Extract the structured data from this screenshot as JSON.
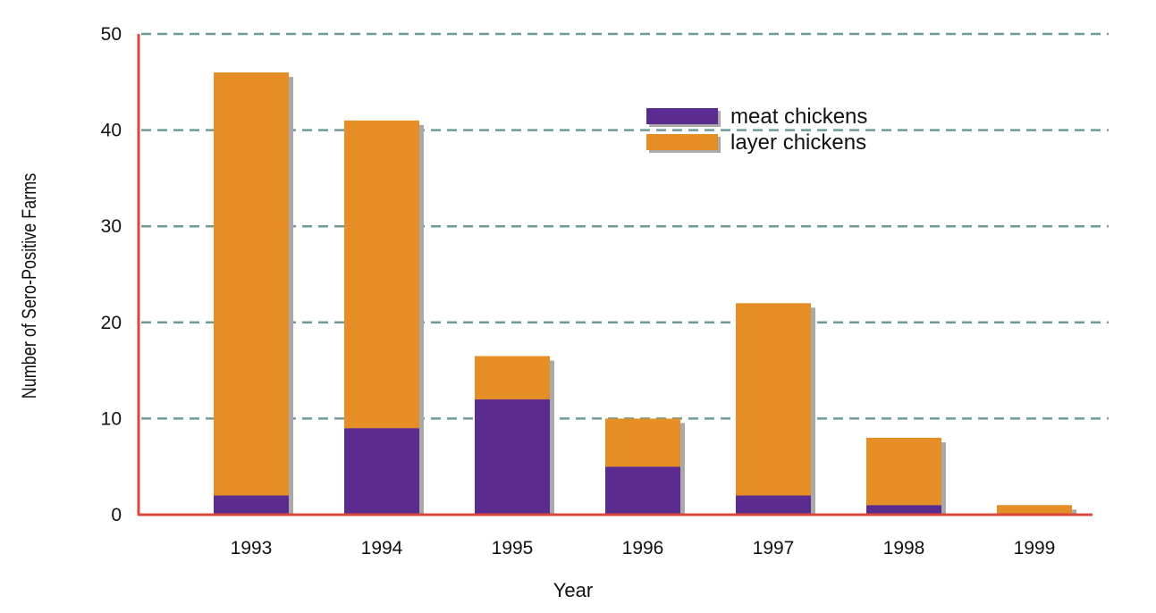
{
  "chart_data": {
    "type": "bar",
    "stacked": true,
    "categories": [
      "1993",
      "1994",
      "1995",
      "1996",
      "1997",
      "1998",
      "1999"
    ],
    "series": [
      {
        "name": "meat chickens",
        "values": [
          2,
          9,
          12,
          5,
          2,
          1,
          0
        ],
        "color": "#5b2b90"
      },
      {
        "name": "layer chickens",
        "values": [
          44,
          32,
          4.5,
          5,
          20,
          7,
          1
        ],
        "color": "#e58e26"
      }
    ],
    "xlabel": "Year",
    "ylabel": "Number of Sero-Positive Farms",
    "ylim": [
      0,
      50
    ],
    "yticks": [
      0,
      10,
      20,
      30,
      40,
      50
    ],
    "grid": "dashed horizontal",
    "legend_position": "top-right",
    "colors": {
      "axis": "#d8473a",
      "grid": "#6e9a9a",
      "shadow": "#a9a9a9"
    }
  }
}
